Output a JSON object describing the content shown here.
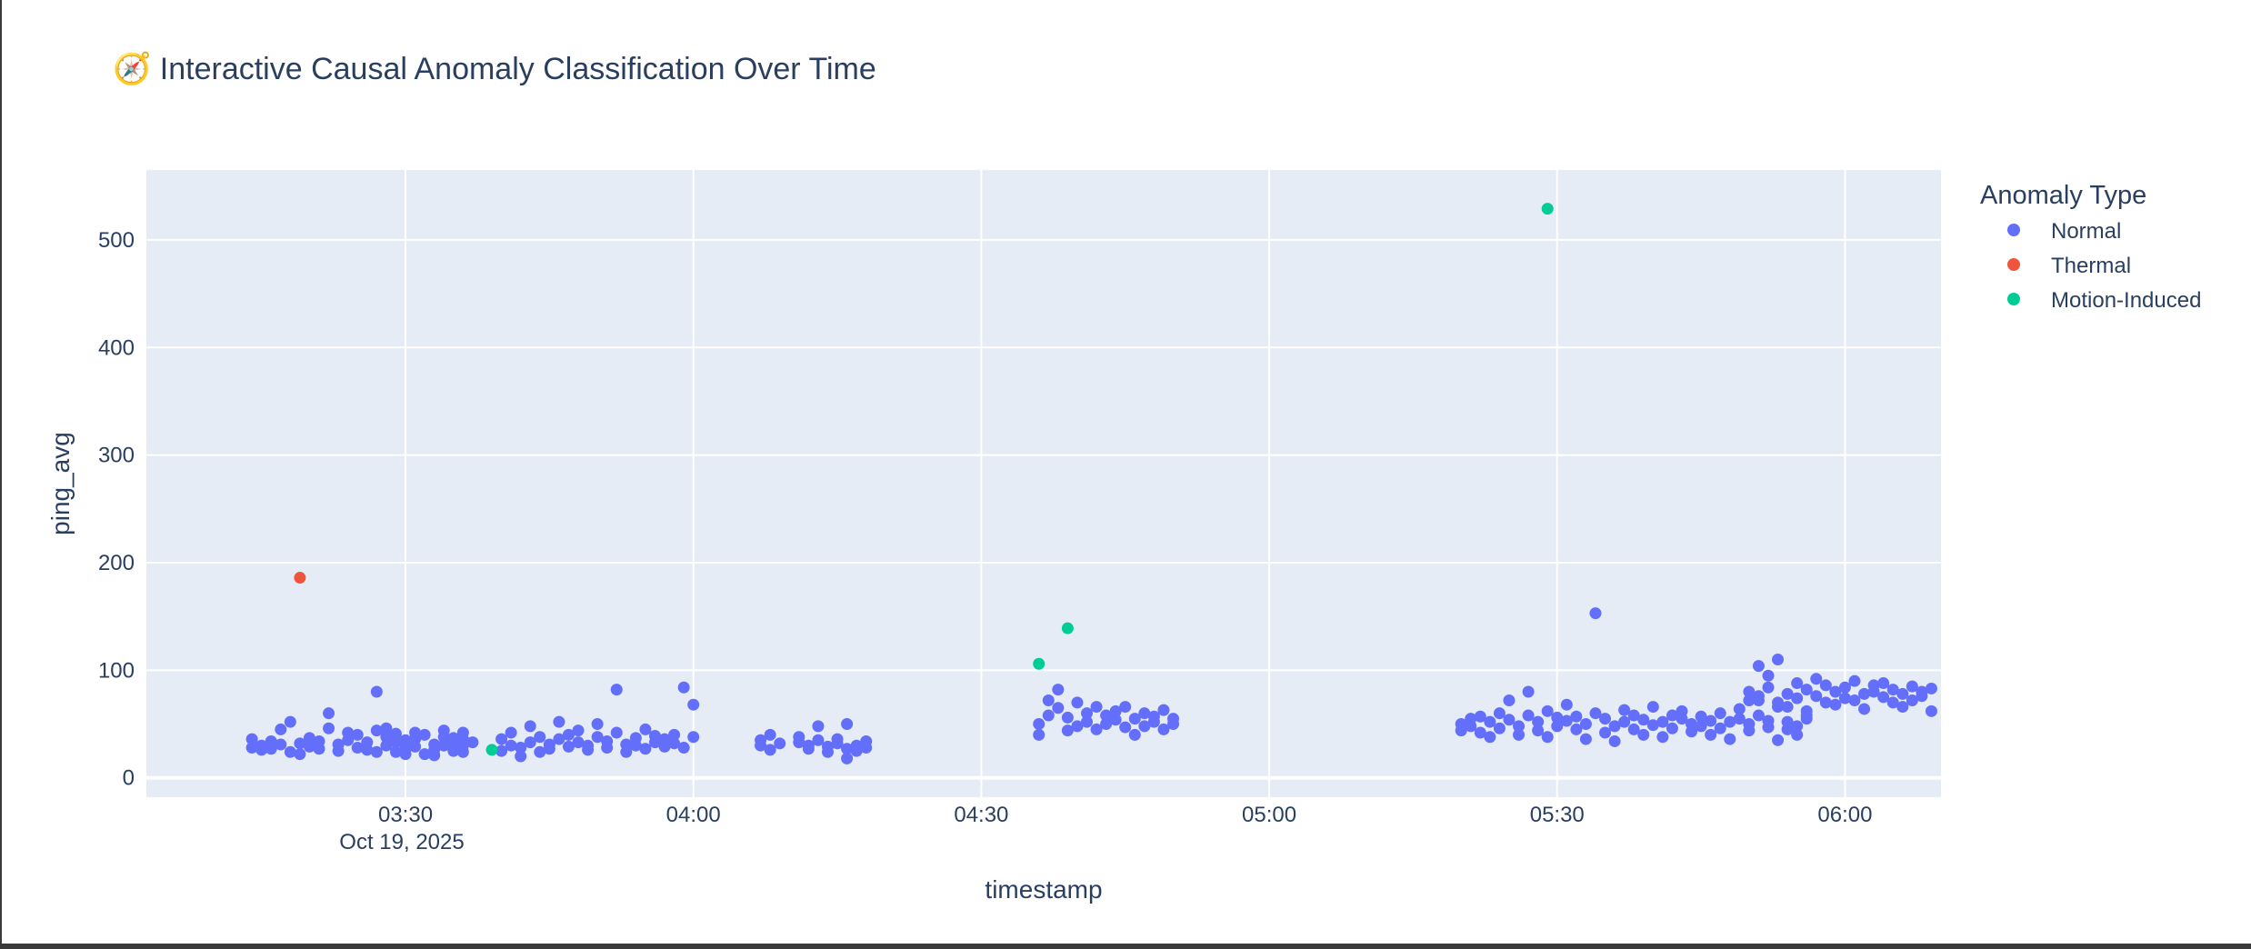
{
  "chart_data": {
    "type": "scatter",
    "title": "🧭 Interactive Causal Anomaly Classification Over Time",
    "xlabel": "timestamp",
    "ylabel": "ping_avg",
    "x_date_label": "Oct 19, 2025",
    "xlim": [
      "03:03",
      "06:10"
    ],
    "ylim": [
      -18,
      565
    ],
    "x_ticks": [
      "03:30",
      "04:00",
      "04:30",
      "05:00",
      "05:30",
      "06:00"
    ],
    "y_ticks": [
      0,
      100,
      200,
      300,
      400,
      500
    ],
    "grid": true,
    "legend": {
      "title": "Anomaly Type",
      "placement": "right"
    },
    "series": [
      {
        "name": "Normal",
        "color": "#636efa",
        "points": [
          [
            "03:14",
            28
          ],
          [
            "03:14",
            36
          ],
          [
            "03:15",
            30
          ],
          [
            "03:15",
            26
          ],
          [
            "03:16",
            34
          ],
          [
            "03:16",
            27
          ],
          [
            "03:17",
            45
          ],
          [
            "03:17",
            31
          ],
          [
            "03:18",
            52
          ],
          [
            "03:18",
            24
          ],
          [
            "03:19",
            32
          ],
          [
            "03:19",
            22
          ],
          [
            "03:20",
            37
          ],
          [
            "03:20",
            29
          ],
          [
            "03:21",
            27
          ],
          [
            "03:21",
            34
          ],
          [
            "03:22",
            60
          ],
          [
            "03:22",
            46
          ],
          [
            "03:23",
            31
          ],
          [
            "03:23",
            25
          ],
          [
            "03:24",
            42
          ],
          [
            "03:24",
            35
          ],
          [
            "03:25",
            28
          ],
          [
            "03:25",
            40
          ],
          [
            "03:26",
            33
          ],
          [
            "03:26",
            26
          ],
          [
            "03:27",
            80
          ],
          [
            "03:27",
            44
          ],
          [
            "03:28",
            30
          ],
          [
            "03:28",
            38
          ],
          [
            "03:29",
            24
          ],
          [
            "03:29",
            41
          ],
          [
            "03:30",
            35
          ],
          [
            "03:30",
            27
          ],
          [
            "03:31",
            36
          ],
          [
            "03:31",
            29
          ],
          [
            "03:32",
            22
          ],
          [
            "03:32",
            40
          ],
          [
            "03:33",
            31
          ],
          [
            "03:33",
            26
          ],
          [
            "03:34",
            38
          ],
          [
            "03:34",
            44
          ],
          [
            "03:35",
            33
          ],
          [
            "03:35",
            28
          ],
          [
            "03:35",
            25
          ],
          [
            "03:36",
            36
          ],
          [
            "03:36",
            42
          ],
          [
            "03:36",
            30
          ],
          [
            "03:27",
            24
          ],
          [
            "03:28",
            46
          ],
          [
            "03:29",
            33
          ],
          [
            "03:30",
            22
          ],
          [
            "03:31",
            42
          ],
          [
            "03:33",
            21
          ],
          [
            "03:34",
            30
          ],
          [
            "03:35",
            37
          ],
          [
            "03:36",
            24
          ],
          [
            "03:37",
            33
          ],
          [
            "03:40",
            25
          ],
          [
            "03:40",
            36
          ],
          [
            "03:41",
            30
          ],
          [
            "03:41",
            42
          ],
          [
            "03:42",
            28
          ],
          [
            "03:42",
            20
          ],
          [
            "03:43",
            48
          ],
          [
            "03:43",
            33
          ],
          [
            "03:44",
            38
          ],
          [
            "03:44",
            24
          ],
          [
            "03:45",
            31
          ],
          [
            "03:45",
            27
          ],
          [
            "03:46",
            52
          ],
          [
            "03:46",
            36
          ],
          [
            "03:47",
            29
          ],
          [
            "03:47",
            40
          ],
          [
            "03:48",
            44
          ],
          [
            "03:48",
            33
          ],
          [
            "03:49",
            30
          ],
          [
            "03:49",
            26
          ],
          [
            "03:50",
            38
          ],
          [
            "03:50",
            50
          ],
          [
            "03:51",
            34
          ],
          [
            "03:51",
            28
          ],
          [
            "03:52",
            82
          ],
          [
            "03:52",
            42
          ],
          [
            "03:53",
            31
          ],
          [
            "03:53",
            24
          ],
          [
            "03:54",
            37
          ],
          [
            "03:54",
            30
          ],
          [
            "03:55",
            45
          ],
          [
            "03:55",
            27
          ],
          [
            "03:56",
            33
          ],
          [
            "03:56",
            39
          ],
          [
            "03:57",
            29
          ],
          [
            "03:57",
            36
          ],
          [
            "03:58",
            40
          ],
          [
            "03:58",
            32
          ],
          [
            "03:59",
            28
          ],
          [
            "03:59",
            84
          ],
          [
            "04:00",
            38
          ],
          [
            "04:00",
            68
          ],
          [
            "04:07",
            30
          ],
          [
            "04:07",
            35
          ],
          [
            "04:08",
            26
          ],
          [
            "04:08",
            40
          ],
          [
            "04:09",
            32
          ],
          [
            "04:11",
            33
          ],
          [
            "04:11",
            38
          ],
          [
            "04:12",
            30
          ],
          [
            "04:12",
            27
          ],
          [
            "04:13",
            35
          ],
          [
            "04:13",
            48
          ],
          [
            "04:14",
            29
          ],
          [
            "04:14",
            24
          ],
          [
            "04:15",
            32
          ],
          [
            "04:15",
            36
          ],
          [
            "04:16",
            50
          ],
          [
            "04:16",
            27
          ],
          [
            "04:16",
            18
          ],
          [
            "04:17",
            30
          ],
          [
            "04:17",
            25
          ],
          [
            "04:18",
            34
          ],
          [
            "04:18",
            28
          ],
          [
            "04:36",
            50
          ],
          [
            "04:36",
            40
          ],
          [
            "04:37",
            72
          ],
          [
            "04:37",
            58
          ],
          [
            "04:38",
            82
          ],
          [
            "04:38",
            65
          ],
          [
            "04:39",
            44
          ],
          [
            "04:39",
            56
          ],
          [
            "04:40",
            70
          ],
          [
            "04:40",
            48
          ],
          [
            "04:41",
            60
          ],
          [
            "04:41",
            52
          ],
          [
            "04:42",
            66
          ],
          [
            "04:42",
            45
          ],
          [
            "04:43",
            58
          ],
          [
            "04:43",
            50
          ],
          [
            "04:44",
            62
          ],
          [
            "04:44",
            54
          ],
          [
            "04:45",
            47
          ],
          [
            "04:45",
            66
          ],
          [
            "04:46",
            40
          ],
          [
            "04:46",
            55
          ],
          [
            "04:47",
            60
          ],
          [
            "04:47",
            48
          ],
          [
            "04:48",
            52
          ],
          [
            "04:48",
            57
          ],
          [
            "04:49",
            45
          ],
          [
            "04:49",
            63
          ],
          [
            "04:50",
            50
          ],
          [
            "04:50",
            55
          ],
          [
            "05:20",
            44
          ],
          [
            "05:20",
            50
          ],
          [
            "05:21",
            48
          ],
          [
            "05:21",
            55
          ],
          [
            "05:22",
            42
          ],
          [
            "05:22",
            57
          ],
          [
            "05:23",
            38
          ],
          [
            "05:23",
            52
          ],
          [
            "05:24",
            60
          ],
          [
            "05:24",
            46
          ],
          [
            "05:25",
            54
          ],
          [
            "05:25",
            72
          ],
          [
            "05:26",
            48
          ],
          [
            "05:26",
            40
          ],
          [
            "05:27",
            80
          ],
          [
            "05:27",
            58
          ],
          [
            "05:28",
            52
          ],
          [
            "05:28",
            44
          ],
          [
            "05:29",
            62
          ],
          [
            "05:29",
            38
          ],
          [
            "05:30",
            56
          ],
          [
            "05:30",
            48
          ],
          [
            "05:31",
            68
          ],
          [
            "05:31",
            53
          ],
          [
            "05:32",
            45
          ],
          [
            "05:32",
            57
          ],
          [
            "05:33",
            36
          ],
          [
            "05:33",
            50
          ],
          [
            "05:34",
            60
          ],
          [
            "05:34",
            153
          ],
          [
            "05:35",
            42
          ],
          [
            "05:35",
            55
          ],
          [
            "05:36",
            48
          ],
          [
            "05:36",
            34
          ],
          [
            "05:37",
            63
          ],
          [
            "05:37",
            52
          ],
          [
            "05:38",
            45
          ],
          [
            "05:38",
            58
          ],
          [
            "05:39",
            40
          ],
          [
            "05:39",
            54
          ],
          [
            "05:40",
            66
          ],
          [
            "05:40",
            49
          ],
          [
            "05:41",
            52
          ],
          [
            "05:41",
            38
          ],
          [
            "05:42",
            58
          ],
          [
            "05:42",
            46
          ],
          [
            "05:43",
            55
          ],
          [
            "05:43",
            62
          ],
          [
            "05:44",
            43
          ],
          [
            "05:44",
            50
          ],
          [
            "05:45",
            57
          ],
          [
            "05:45",
            48
          ],
          [
            "05:46",
            40
          ],
          [
            "05:46",
            53
          ],
          [
            "05:47",
            60
          ],
          [
            "05:47",
            46
          ],
          [
            "05:48",
            52
          ],
          [
            "05:48",
            36
          ],
          [
            "05:49",
            64
          ],
          [
            "05:49",
            55
          ],
          [
            "05:50",
            44
          ],
          [
            "05:50",
            50
          ],
          [
            "05:51",
            72
          ],
          [
            "05:51",
            58
          ],
          [
            "05:52",
            47
          ],
          [
            "05:52",
            53
          ],
          [
            "05:53",
            35
          ],
          [
            "05:53",
            66
          ],
          [
            "05:54",
            45
          ],
          [
            "05:54",
            52
          ],
          [
            "05:55",
            40
          ],
          [
            "05:55",
            48
          ],
          [
            "05:56",
            55
          ],
          [
            "05:56",
            62
          ],
          [
            "05:50",
            80
          ],
          [
            "05:50",
            72
          ],
          [
            "05:51",
            104
          ],
          [
            "05:51",
            76
          ],
          [
            "05:52",
            95
          ],
          [
            "05:52",
            84
          ],
          [
            "05:53",
            70
          ],
          [
            "05:53",
            110
          ],
          [
            "05:54",
            78
          ],
          [
            "05:54",
            66
          ],
          [
            "05:55",
            88
          ],
          [
            "05:55",
            74
          ],
          [
            "05:56",
            82
          ],
          [
            "05:56",
            58
          ],
          [
            "05:57",
            92
          ],
          [
            "05:57",
            76
          ],
          [
            "05:58",
            70
          ],
          [
            "05:58",
            86
          ],
          [
            "05:59",
            80
          ],
          [
            "05:59",
            68
          ],
          [
            "06:00",
            84
          ],
          [
            "06:00",
            74
          ],
          [
            "06:01",
            90
          ],
          [
            "06:01",
            72
          ],
          [
            "06:02",
            78
          ],
          [
            "06:02",
            64
          ],
          [
            "06:03",
            86
          ],
          [
            "06:03",
            80
          ],
          [
            "06:04",
            75
          ],
          [
            "06:04",
            88
          ],
          [
            "06:05",
            70
          ],
          [
            "06:05",
            82
          ],
          [
            "06:06",
            66
          ],
          [
            "06:06",
            78
          ],
          [
            "06:07",
            85
          ],
          [
            "06:07",
            72
          ],
          [
            "06:08",
            80
          ],
          [
            "06:08",
            76
          ],
          [
            "06:09",
            83
          ],
          [
            "06:09",
            62
          ]
        ]
      },
      {
        "name": "Thermal",
        "color": "#ef553b",
        "points": [
          [
            "03:19",
            186
          ]
        ]
      },
      {
        "name": "Motion-Induced",
        "color": "#00cc96",
        "points": [
          [
            "03:39",
            26
          ],
          [
            "04:36",
            106
          ],
          [
            "04:39",
            139
          ],
          [
            "05:29",
            529
          ]
        ]
      }
    ]
  }
}
